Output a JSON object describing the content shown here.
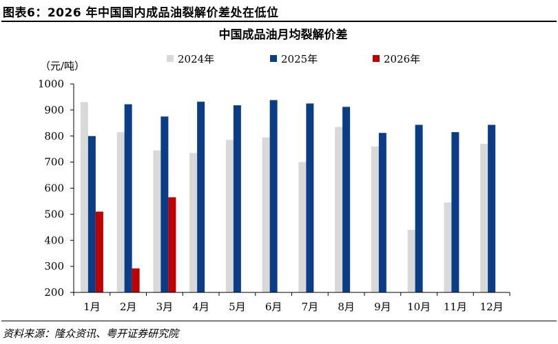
{
  "figure": {
    "title": "图表6：2026 年中国国内成品油裂解价差处在低位",
    "source": "资料来源：隆众资讯、粤开证券研究院"
  },
  "chart_data": {
    "type": "bar",
    "title": "中国成品油月均裂解价差",
    "ylabel": "（元/吨）",
    "xlabel": "",
    "ylim": [
      200,
      1000
    ],
    "yticks": [
      200,
      300,
      400,
      500,
      600,
      700,
      800,
      900,
      1000
    ],
    "grid": false,
    "legend_position": "top",
    "categories": [
      "1月",
      "2月",
      "3月",
      "4月",
      "5月",
      "6月",
      "7月",
      "8月",
      "9月",
      "10月",
      "11月",
      "12月"
    ],
    "series": [
      {
        "name": "2024年",
        "color": "#d9d9d9",
        "values": [
          930,
          815,
          745,
          735,
          785,
          795,
          700,
          835,
          760,
          440,
          545,
          770
        ]
      },
      {
        "name": "2025年",
        "color": "#0b3d86",
        "values": [
          800,
          922,
          875,
          932,
          918,
          938,
          925,
          912,
          812,
          843,
          815,
          843
        ]
      },
      {
        "name": "2026年",
        "color": "#c00000",
        "values": [
          510,
          292,
          565,
          null,
          null,
          null,
          null,
          null,
          null,
          null,
          null,
          null
        ]
      }
    ]
  }
}
